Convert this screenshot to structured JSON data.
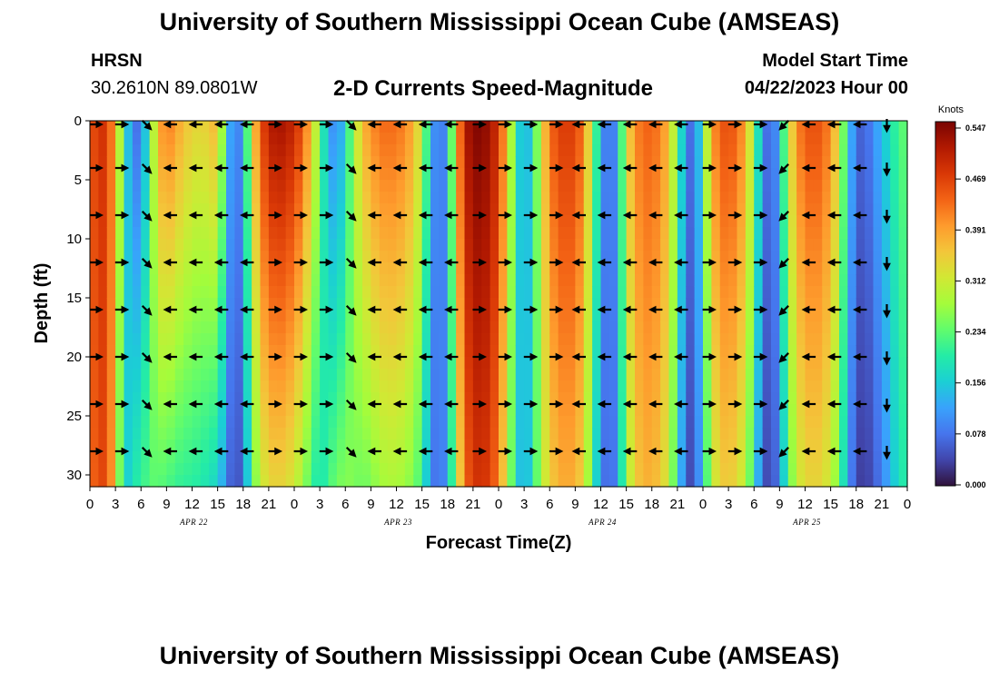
{
  "header": {
    "title": "University of Southern Mississippi Ocean Cube (AMSEAS)",
    "station": "HRSN",
    "coordinates": "30.2610N  89.0801W",
    "subtitle": "2-D Currents Speed-Magnitude",
    "start_label": "Model Start Time",
    "start_value": "04/22/2023 Hour 00"
  },
  "footer": {
    "title": "University of Southern Mississippi Ocean Cube (AMSEAS)"
  },
  "chart_data": {
    "type": "heatmap",
    "title": "2-D Currents Speed-Magnitude",
    "xlabel": "Forecast Time(Z)",
    "ylabel": "Depth (ft)",
    "units": "Knots",
    "xlim": [
      0,
      96
    ],
    "ylim": [
      0,
      31
    ],
    "x_ticks": [
      0,
      3,
      6,
      9,
      12,
      15,
      18,
      21,
      24,
      27,
      30,
      33,
      36,
      39,
      42,
      45,
      48,
      51,
      54,
      57,
      60,
      63,
      66,
      69,
      72,
      75,
      78,
      81,
      84,
      87,
      90,
      93,
      96
    ],
    "x_tick_labels": [
      "0",
      "3",
      "6",
      "9",
      "12",
      "15",
      "18",
      "21",
      "0",
      "3",
      "6",
      "9",
      "12",
      "15",
      "18",
      "21",
      "0",
      "3",
      "6",
      "9",
      "12",
      "15",
      "18",
      "21",
      "0",
      "3",
      "6",
      "9",
      "12",
      "15",
      "18",
      "21",
      "0"
    ],
    "y_ticks": [
      0,
      5,
      10,
      15,
      20,
      25,
      30
    ],
    "y_tick_labels": [
      "0",
      "5",
      "10",
      "15",
      "20",
      "25",
      "30"
    ],
    "date_labels": [
      {
        "hour": 12,
        "text": "APR 22"
      },
      {
        "hour": 36,
        "text": "APR 23"
      },
      {
        "hour": 60,
        "text": "APR 24"
      },
      {
        "hour": 84,
        "text": "APR 25"
      }
    ],
    "colorbar": {
      "min": 0.0,
      "max": 0.547,
      "ticks": [
        "0.547",
        "0.469",
        "0.391",
        "0.312",
        "0.234",
        "0.156",
        "0.078",
        "0.000"
      ]
    },
    "colors": [
      "#30123b",
      "#4145ab",
      "#4675ed",
      "#39a2fc",
      "#1bcfd4",
      "#24eca6",
      "#61fc6c",
      "#a4fc3b",
      "#d1e834",
      "#f3c63a",
      "#fe9b2d",
      "#f36315",
      "#d93806",
      "#b11901",
      "#7a0402"
    ],
    "speed_profiles": [
      {
        "hour": 0,
        "top": 0.42,
        "bottom": 0.4
      },
      {
        "hour": 1,
        "top": 0.49,
        "bottom": 0.47
      },
      {
        "hour": 2,
        "top": 0.46,
        "bottom": 0.44
      },
      {
        "hour": 3,
        "top": 0.38,
        "bottom": 0.36
      },
      {
        "hour": 4,
        "top": 0.2,
        "bottom": 0.13
      },
      {
        "hour": 5,
        "top": 0.08,
        "bottom": 0.19
      },
      {
        "hour": 6,
        "top": 0.07,
        "bottom": 0.2
      },
      {
        "hour": 7,
        "top": 0.22,
        "bottom": 0.23
      },
      {
        "hour": 8,
        "top": 0.37,
        "bottom": 0.23
      },
      {
        "hour": 9,
        "top": 0.42,
        "bottom": 0.22
      },
      {
        "hour": 10,
        "top": 0.39,
        "bottom": 0.21
      },
      {
        "hour": 11,
        "top": 0.36,
        "bottom": 0.2
      },
      {
        "hour": 12,
        "top": 0.34,
        "bottom": 0.2
      },
      {
        "hour": 13,
        "top": 0.33,
        "bottom": 0.19
      },
      {
        "hour": 14,
        "top": 0.35,
        "bottom": 0.18
      },
      {
        "hour": 15,
        "top": 0.37,
        "bottom": 0.16
      },
      {
        "hour": 16,
        "top": 0.18,
        "bottom": 0.1
      },
      {
        "hour": 17,
        "top": 0.06,
        "bottom": 0.03
      },
      {
        "hour": 18,
        "top": 0.13,
        "bottom": 0.08
      },
      {
        "hour": 19,
        "top": 0.32,
        "bottom": 0.22
      },
      {
        "hour": 20,
        "top": 0.44,
        "bottom": 0.3
      },
      {
        "hour": 21,
        "top": 0.5,
        "bottom": 0.33
      },
      {
        "hour": 22,
        "top": 0.52,
        "bottom": 0.34
      },
      {
        "hour": 23,
        "top": 0.51,
        "bottom": 0.33
      },
      {
        "hour": 24,
        "top": 0.49,
        "bottom": 0.31
      },
      {
        "hour": 25,
        "top": 0.44,
        "bottom": 0.27
      },
      {
        "hour": 26,
        "top": 0.36,
        "bottom": 0.22
      },
      {
        "hour": 27,
        "top": 0.24,
        "bottom": 0.17
      },
      {
        "hour": 28,
        "top": 0.12,
        "bottom": 0.22
      },
      {
        "hour": 29,
        "top": 0.09,
        "bottom": 0.24
      },
      {
        "hour": 30,
        "top": 0.16,
        "bottom": 0.26
      },
      {
        "hour": 31,
        "top": 0.28,
        "bottom": 0.25
      },
      {
        "hour": 32,
        "top": 0.36,
        "bottom": 0.24
      },
      {
        "hour": 33,
        "top": 0.4,
        "bottom": 0.25
      },
      {
        "hour": 34,
        "top": 0.42,
        "bottom": 0.27
      },
      {
        "hour": 35,
        "top": 0.43,
        "bottom": 0.28
      },
      {
        "hour": 36,
        "top": 0.42,
        "bottom": 0.28
      },
      {
        "hour": 37,
        "top": 0.41,
        "bottom": 0.27
      },
      {
        "hour": 38,
        "top": 0.37,
        "bottom": 0.25
      },
      {
        "hour": 39,
        "top": 0.3,
        "bottom": 0.21
      },
      {
        "hour": 40,
        "top": 0.14,
        "bottom": 0.1
      },
      {
        "hour": 41,
        "top": 0.06,
        "bottom": 0.06
      },
      {
        "hour": 42,
        "top": 0.12,
        "bottom": 0.12
      },
      {
        "hour": 43,
        "top": 0.36,
        "bottom": 0.28
      },
      {
        "hour": 44,
        "top": 0.5,
        "bottom": 0.42
      },
      {
        "hour": 45,
        "top": 0.54,
        "bottom": 0.47
      },
      {
        "hour": 46,
        "top": 0.54,
        "bottom": 0.48
      },
      {
        "hour": 47,
        "top": 0.52,
        "bottom": 0.46
      },
      {
        "hour": 48,
        "top": 0.47,
        "bottom": 0.41
      },
      {
        "hour": 49,
        "top": 0.36,
        "bottom": 0.3
      },
      {
        "hour": 50,
        "top": 0.2,
        "bottom": 0.18
      },
      {
        "hour": 51,
        "top": 0.11,
        "bottom": 0.11
      },
      {
        "hour": 52,
        "top": 0.18,
        "bottom": 0.19
      },
      {
        "hour": 53,
        "top": 0.32,
        "bottom": 0.28
      },
      {
        "hour": 54,
        "top": 0.42,
        "bottom": 0.34
      },
      {
        "hour": 55,
        "top": 0.46,
        "bottom": 0.37
      },
      {
        "hour": 56,
        "top": 0.47,
        "bottom": 0.38
      },
      {
        "hour": 57,
        "top": 0.46,
        "bottom": 0.37
      },
      {
        "hour": 58,
        "top": 0.41,
        "bottom": 0.33
      },
      {
        "hour": 59,
        "top": 0.28,
        "bottom": 0.22
      },
      {
        "hour": 60,
        "top": 0.13,
        "bottom": 0.1
      },
      {
        "hour": 61,
        "top": 0.05,
        "bottom": 0.05
      },
      {
        "hour": 62,
        "top": 0.13,
        "bottom": 0.11
      },
      {
        "hour": 63,
        "top": 0.32,
        "bottom": 0.27
      },
      {
        "hour": 64,
        "top": 0.4,
        "bottom": 0.34
      },
      {
        "hour": 65,
        "top": 0.43,
        "bottom": 0.37
      },
      {
        "hour": 66,
        "top": 0.43,
        "bottom": 0.37
      },
      {
        "hour": 67,
        "top": 0.41,
        "bottom": 0.35
      },
      {
        "hour": 68,
        "top": 0.36,
        "bottom": 0.3
      },
      {
        "hour": 69,
        "top": 0.24,
        "bottom": 0.19
      },
      {
        "hour": 70,
        "top": 0.09,
        "bottom": 0.05
      },
      {
        "hour": 71,
        "top": 0.06,
        "bottom": 0.04
      },
      {
        "hour": 72,
        "top": 0.22,
        "bottom": 0.16
      },
      {
        "hour": 73,
        "top": 0.38,
        "bottom": 0.29
      },
      {
        "hour": 74,
        "top": 0.44,
        "bottom": 0.34
      },
      {
        "hour": 75,
        "top": 0.45,
        "bottom": 0.35
      },
      {
        "hour": 76,
        "top": 0.43,
        "bottom": 0.33
      },
      {
        "hour": 77,
        "top": 0.38,
        "bottom": 0.29
      },
      {
        "hour": 78,
        "top": 0.26,
        "bottom": 0.19
      },
      {
        "hour": 79,
        "top": 0.1,
        "bottom": 0.06
      },
      {
        "hour": 80,
        "top": 0.05,
        "bottom": 0.03
      },
      {
        "hour": 81,
        "top": 0.14,
        "bottom": 0.1
      },
      {
        "hour": 82,
        "top": 0.3,
        "bottom": 0.22
      },
      {
        "hour": 83,
        "top": 0.4,
        "bottom": 0.3
      },
      {
        "hour": 84,
        "top": 0.44,
        "bottom": 0.33
      },
      {
        "hour": 85,
        "top": 0.45,
        "bottom": 0.34
      },
      {
        "hour": 86,
        "top": 0.44,
        "bottom": 0.33
      },
      {
        "hour": 87,
        "top": 0.4,
        "bottom": 0.3
      },
      {
        "hour": 88,
        "top": 0.32,
        "bottom": 0.24
      },
      {
        "hour": 89,
        "top": 0.17,
        "bottom": 0.12
      },
      {
        "hour": 90,
        "top": 0.07,
        "bottom": 0.04
      },
      {
        "hour": 91,
        "top": 0.06,
        "bottom": 0.03
      },
      {
        "hour": 92,
        "top": 0.1,
        "bottom": 0.05
      },
      {
        "hour": 93,
        "top": 0.14,
        "bottom": 0.09
      },
      {
        "hour": 94,
        "top": 0.18,
        "bottom": 0.13
      },
      {
        "hour": 95,
        "top": 0.22,
        "bottom": 0.18
      },
      {
        "hour": 96,
        "top": 0.24,
        "bottom": 0.2
      }
    ],
    "vector_depths": [
      0,
      4,
      8,
      12,
      16,
      20,
      24,
      28
    ],
    "vectors": [
      {
        "hour": 0,
        "dir": "E"
      },
      {
        "hour": 3,
        "dir": "E"
      },
      {
        "hour": 6,
        "dir": "SE"
      },
      {
        "hour": 9,
        "dir": "W"
      },
      {
        "hour": 12,
        "dir": "W"
      },
      {
        "hour": 15,
        "dir": "W"
      },
      {
        "hour": 18,
        "dir": "W"
      },
      {
        "hour": 21,
        "dir": "E"
      },
      {
        "hour": 24,
        "dir": "E"
      },
      {
        "hour": 27,
        "dir": "E"
      },
      {
        "hour": 30,
        "dir": "SE"
      },
      {
        "hour": 33,
        "dir": "W"
      },
      {
        "hour": 36,
        "dir": "W"
      },
      {
        "hour": 39,
        "dir": "W"
      },
      {
        "hour": 42,
        "dir": "W"
      },
      {
        "hour": 45,
        "dir": "E"
      },
      {
        "hour": 48,
        "dir": "E"
      },
      {
        "hour": 51,
        "dir": "E"
      },
      {
        "hour": 54,
        "dir": "E"
      },
      {
        "hour": 57,
        "dir": "W"
      },
      {
        "hour": 60,
        "dir": "W"
      },
      {
        "hour": 63,
        "dir": "W"
      },
      {
        "hour": 66,
        "dir": "W"
      },
      {
        "hour": 69,
        "dir": "W"
      },
      {
        "hour": 72,
        "dir": "E"
      },
      {
        "hour": 75,
        "dir": "E"
      },
      {
        "hour": 78,
        "dir": "E"
      },
      {
        "hour": 81,
        "dir": "SW"
      },
      {
        "hour": 84,
        "dir": "W"
      },
      {
        "hour": 87,
        "dir": "W"
      },
      {
        "hour": 90,
        "dir": "W"
      },
      {
        "hour": 93,
        "dir": "S"
      }
    ]
  }
}
